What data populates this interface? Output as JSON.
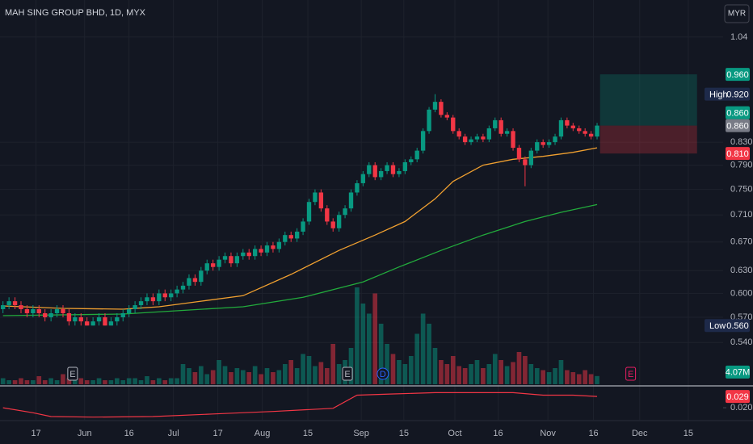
{
  "chart_data": {
    "type": "candlestick",
    "title": "MAH SING GROUP BHD, 1D, MYX",
    "currency": "MYR",
    "log": true,
    "grid": true,
    "up_color": "#089981",
    "down_color": "#f23645",
    "ylim": [
      0.492,
      1.126
    ],
    "yticks": [
      1.04,
      {
        "value": 0.83,
        "label": "0.830"
      },
      {
        "value": 0.79,
        "label": "0.790"
      },
      {
        "value": 0.75,
        "label": "0.750"
      },
      {
        "value": 0.71,
        "label": "0.710"
      },
      {
        "value": 0.67,
        "label": "0.670"
      },
      {
        "value": 0.63,
        "label": "0.630"
      },
      {
        "value": 0.6,
        "label": "0.600"
      },
      {
        "value": 0.57,
        "label": "0.570"
      },
      {
        "value": 0.54,
        "label": "0.540"
      }
    ],
    "xlim": [
      -0.5,
      120
    ],
    "xticks": [
      {
        "value": 5.5,
        "label": "17"
      },
      {
        "value": 13.6,
        "label": "Jun"
      },
      {
        "value": 21,
        "label": "16"
      },
      {
        "value": 28.4,
        "label": "Jul"
      },
      {
        "value": 35.8,
        "label": "17"
      },
      {
        "value": 43.2,
        "label": "Aug"
      },
      {
        "value": 50.8,
        "label": "15"
      },
      {
        "value": 59.7,
        "label": "Sep"
      },
      {
        "value": 66.8,
        "label": "15"
      },
      {
        "value": 75.3,
        "label": "Oct"
      },
      {
        "value": 82.5,
        "label": "16"
      },
      {
        "value": 90.8,
        "label": "Nov"
      },
      {
        "value": 98.4,
        "label": "16"
      },
      {
        "value": 106.1,
        "label": "Dec"
      },
      {
        "value": 114.2,
        "label": "15"
      }
    ],
    "open": [
      0.58,
      0.585,
      0.59,
      0.585,
      0.58,
      0.575,
      0.58,
      0.575,
      0.57,
      0.575,
      0.58,
      0.575,
      0.565,
      0.57,
      0.565,
      0.56,
      0.565,
      0.57,
      0.56,
      0.565,
      0.57,
      0.575,
      0.58,
      0.585,
      0.59,
      0.595,
      0.59,
      0.6,
      0.595,
      0.6,
      0.605,
      0.61,
      0.62,
      0.615,
      0.63,
      0.64,
      0.635,
      0.645,
      0.65,
      0.64,
      0.65,
      0.655,
      0.65,
      0.66,
      0.655,
      0.665,
      0.66,
      0.67,
      0.68,
      0.675,
      0.685,
      0.7,
      0.73,
      0.745,
      0.72,
      0.7,
      0.69,
      0.71,
      0.72,
      0.745,
      0.76,
      0.775,
      0.79,
      0.77,
      0.78,
      0.79,
      0.775,
      0.78,
      0.795,
      0.8,
      0.815,
      0.85,
      0.89,
      0.905,
      0.88,
      0.875,
      0.85,
      0.84,
      0.83,
      0.835,
      0.84,
      0.835,
      0.855,
      0.87,
      0.845,
      0.85,
      0.82,
      0.8,
      0.79,
      0.815,
      0.83,
      0.825,
      0.83,
      0.84,
      0.87,
      0.86,
      0.855,
      0.85,
      0.845,
      0.84
    ],
    "high": [
      0.59,
      0.595,
      0.595,
      0.59,
      0.585,
      0.585,
      0.585,
      0.58,
      0.58,
      0.585,
      0.585,
      0.58,
      0.575,
      0.575,
      0.57,
      0.57,
      0.575,
      0.575,
      0.57,
      0.575,
      0.58,
      0.585,
      0.59,
      0.595,
      0.6,
      0.6,
      0.605,
      0.605,
      0.605,
      0.61,
      0.615,
      0.625,
      0.625,
      0.635,
      0.645,
      0.645,
      0.65,
      0.655,
      0.655,
      0.655,
      0.66,
      0.66,
      0.665,
      0.665,
      0.67,
      0.67,
      0.675,
      0.685,
      0.685,
      0.69,
      0.705,
      0.735,
      0.75,
      0.75,
      0.725,
      0.705,
      0.715,
      0.725,
      0.75,
      0.765,
      0.78,
      0.795,
      0.795,
      0.785,
      0.795,
      0.795,
      0.785,
      0.8,
      0.805,
      0.82,
      0.855,
      0.895,
      0.92,
      0.91,
      0.885,
      0.88,
      0.855,
      0.845,
      0.84,
      0.845,
      0.845,
      0.86,
      0.875,
      0.875,
      0.855,
      0.855,
      0.825,
      0.805,
      0.82,
      0.835,
      0.835,
      0.835,
      0.845,
      0.875,
      0.875,
      0.865,
      0.86,
      0.855,
      0.85,
      0.865
    ],
    "low": [
      0.575,
      0.58,
      0.58,
      0.575,
      0.57,
      0.57,
      0.57,
      0.565,
      0.565,
      0.57,
      0.57,
      0.56,
      0.56,
      0.56,
      0.56,
      0.56,
      0.56,
      0.56,
      0.56,
      0.56,
      0.565,
      0.57,
      0.575,
      0.58,
      0.585,
      0.585,
      0.585,
      0.59,
      0.59,
      0.595,
      0.6,
      0.605,
      0.61,
      0.61,
      0.625,
      0.63,
      0.63,
      0.64,
      0.635,
      0.635,
      0.645,
      0.645,
      0.645,
      0.65,
      0.65,
      0.655,
      0.655,
      0.665,
      0.67,
      0.67,
      0.68,
      0.695,
      0.725,
      0.715,
      0.695,
      0.685,
      0.685,
      0.705,
      0.715,
      0.74,
      0.755,
      0.77,
      0.765,
      0.765,
      0.775,
      0.77,
      0.77,
      0.775,
      0.79,
      0.795,
      0.81,
      0.845,
      0.885,
      0.875,
      0.87,
      0.845,
      0.835,
      0.825,
      0.825,
      0.83,
      0.83,
      0.83,
      0.85,
      0.84,
      0.84,
      0.815,
      0.795,
      0.755,
      0.785,
      0.81,
      0.82,
      0.82,
      0.825,
      0.835,
      0.855,
      0.85,
      0.845,
      0.84,
      0.835,
      0.835
    ],
    "close": [
      0.585,
      0.59,
      0.585,
      0.58,
      0.575,
      0.58,
      0.575,
      0.57,
      0.575,
      0.58,
      0.575,
      0.565,
      0.57,
      0.565,
      0.56,
      0.565,
      0.57,
      0.56,
      0.565,
      0.57,
      0.575,
      0.58,
      0.585,
      0.59,
      0.595,
      0.59,
      0.6,
      0.595,
      0.6,
      0.605,
      0.61,
      0.62,
      0.615,
      0.63,
      0.64,
      0.635,
      0.645,
      0.65,
      0.64,
      0.65,
      0.655,
      0.65,
      0.66,
      0.655,
      0.665,
      0.66,
      0.67,
      0.68,
      0.675,
      0.685,
      0.7,
      0.73,
      0.745,
      0.72,
      0.7,
      0.69,
      0.71,
      0.72,
      0.745,
      0.76,
      0.775,
      0.79,
      0.77,
      0.78,
      0.79,
      0.775,
      0.78,
      0.795,
      0.8,
      0.815,
      0.85,
      0.89,
      0.905,
      0.88,
      0.875,
      0.85,
      0.84,
      0.83,
      0.835,
      0.84,
      0.835,
      0.855,
      0.87,
      0.845,
      0.85,
      0.82,
      0.8,
      0.79,
      0.815,
      0.83,
      0.825,
      0.83,
      0.84,
      0.87,
      0.86,
      0.855,
      0.85,
      0.845,
      0.84,
      0.86
    ],
    "last_price_label": "0.860",
    "high_marker": {
      "name": "High",
      "value": 0.92,
      "label": "0.920"
    },
    "low_marker": {
      "name": "Low",
      "value": 0.56,
      "label": "0.560"
    },
    "overlays": [
      {
        "color": "#f0a030",
        "x": [
          0,
          10,
          20,
          26,
          33,
          40,
          48,
          56,
          62,
          67,
          72,
          75,
          80,
          85,
          90,
          95,
          99
        ],
        "values": [
          0.584,
          0.581,
          0.58,
          0.583,
          0.59,
          0.597,
          0.625,
          0.658,
          0.68,
          0.7,
          0.735,
          0.763,
          0.79,
          0.8,
          0.805,
          0.812,
          0.82
        ]
      },
      {
        "color": "#22ab3c",
        "x": [
          0,
          20,
          40,
          50,
          60,
          66,
          73,
          80,
          87,
          93,
          99
        ],
        "values": [
          0.572,
          0.574,
          0.583,
          0.595,
          0.615,
          0.635,
          0.658,
          0.68,
          0.7,
          0.714,
          0.726
        ]
      }
    ],
    "position": {
      "target": 0.96,
      "target_label": "0.960",
      "entry": 0.86,
      "entry_label": "0.860",
      "stop": 0.81,
      "stop_label": "0.810"
    },
    "volume": {
      "vlim": [
        0,
        50
      ],
      "values": [
        3,
        2,
        2,
        3,
        2,
        2,
        4,
        2,
        3,
        2,
        5,
        3,
        2,
        3,
        2,
        2,
        3,
        2,
        2,
        3,
        2,
        3,
        3,
        2,
        4,
        2,
        3,
        2,
        3,
        3,
        10,
        8,
        6,
        9,
        5,
        7,
        12,
        9,
        6,
        8,
        7,
        6,
        9,
        5,
        8,
        6,
        7,
        10,
        12,
        8,
        15,
        14,
        9,
        11,
        8,
        20,
        10,
        12,
        18,
        48,
        40,
        35,
        45,
        30,
        20,
        15,
        12,
        10,
        14,
        25,
        35,
        30,
        18,
        12,
        10,
        14,
        9,
        8,
        10,
        12,
        8,
        10,
        15,
        12,
        9,
        11,
        16,
        14,
        10,
        8,
        7,
        6,
        8,
        12,
        7,
        6,
        5,
        7,
        5,
        4.07
      ],
      "last_label": "4.07M"
    },
    "events": [
      {
        "x": 11.6,
        "label": "E",
        "color": "#b2b5be"
      },
      {
        "x": 57.4,
        "label": "E",
        "color": "#b2b5be"
      },
      {
        "x": 63.3,
        "label": "D",
        "color": "#2962ff"
      },
      {
        "x": 104.6,
        "label": "E",
        "color": "#e91e63"
      }
    ],
    "indicator": {
      "color": "#f23645",
      "ylim": [
        0.0104,
        0.0374
      ],
      "yticks": [
        {
          "value": 0.02,
          "label": "0.020"
        }
      ],
      "x": [
        0,
        5,
        8,
        15,
        25,
        35,
        45,
        55,
        59,
        65,
        72,
        80,
        85,
        90,
        95,
        99
      ],
      "values": [
        0.02,
        0.016,
        0.013,
        0.0125,
        0.013,
        0.015,
        0.017,
        0.0195,
        0.03,
        0.031,
        0.032,
        0.032,
        0.032,
        0.03,
        0.03,
        0.029
      ],
      "last_label": "0.029"
    }
  }
}
